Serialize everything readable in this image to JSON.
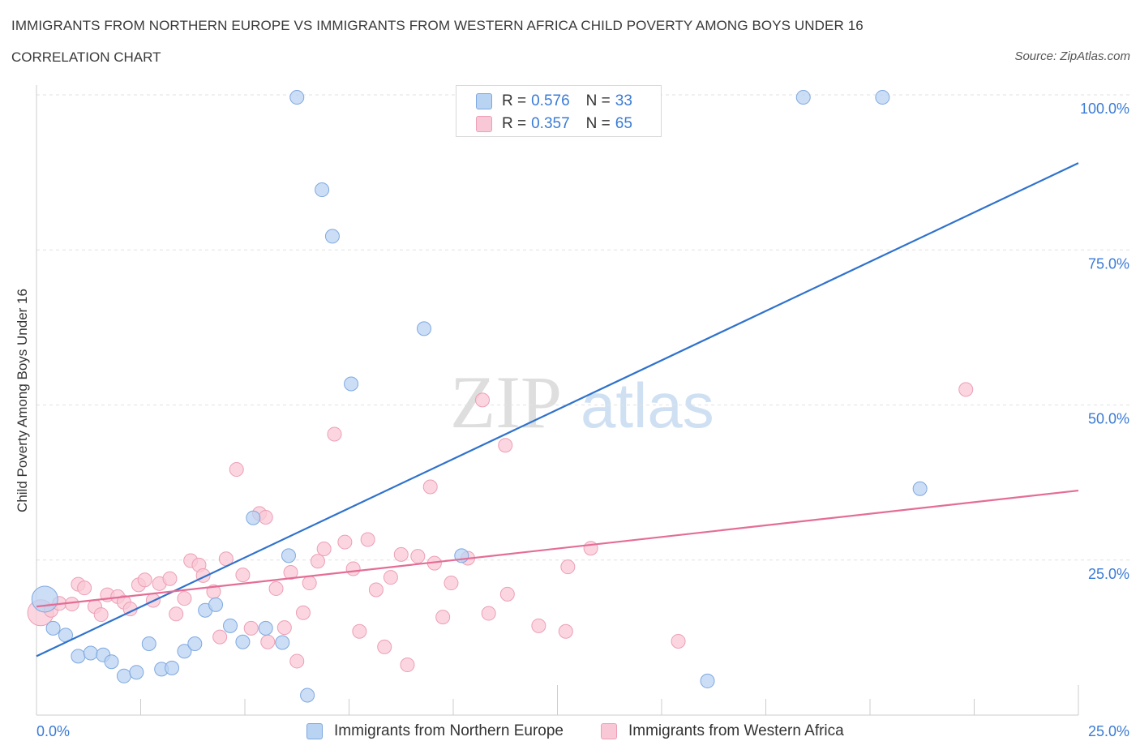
{
  "header": {
    "title": "IMMIGRANTS FROM NORTHERN EUROPE VS IMMIGRANTS FROM WESTERN AFRICA CHILD POVERTY AMONG BOYS UNDER 16",
    "subtitle": "CORRELATION CHART",
    "source": "Source: ZipAtlas.com"
  },
  "watermark": {
    "zip": "ZIP",
    "atlas": "atlas"
  },
  "colors": {
    "blue_fill": "#b9d3f3",
    "blue_stroke": "#7ea8e0",
    "blue_line": "#2f72cc",
    "pink_fill": "#f9c8d6",
    "pink_stroke": "#ec9fb6",
    "pink_line": "#e46d96",
    "tick_label": "#3a7bd5"
  },
  "legend": {
    "rows": [
      {
        "r_label": "R =",
        "r_value": "0.576",
        "n_label": "N =",
        "n_value": "33"
      },
      {
        "r_label": "R =",
        "r_value": "0.357",
        "n_label": "N =",
        "n_value": "65"
      }
    ]
  },
  "chart_data": {
    "type": "scatter",
    "title": "IMMIGRANTS FROM NORTHERN EUROPE VS IMMIGRANTS FROM WESTERN AFRICA CHILD POVERTY AMONG BOYS UNDER 16",
    "xlabel": "",
    "ylabel": "Child Poverty Among Boys Under 16",
    "xlim": [
      0,
      25
    ],
    "ylim": [
      0,
      100
    ],
    "x_tick_labels": [
      "0.0%",
      "25.0%"
    ],
    "y_tick_labels": [
      "100.0%",
      "75.0%",
      "50.0%",
      "25.0%"
    ],
    "y_tick_values": [
      100,
      75,
      50,
      25
    ],
    "grid": true,
    "legend_position": "bottom",
    "series": [
      {
        "name": "Immigrants from Northern Europe",
        "color": "#7ea8e0",
        "trend": {
          "x": [
            0,
            25
          ],
          "y": [
            9.5,
            89
          ]
        },
        "points": [
          {
            "x": 0.2,
            "y": 18.7,
            "big": true
          },
          {
            "x": 0.4,
            "y": 14
          },
          {
            "x": 0.7,
            "y": 12.9
          },
          {
            "x": 1.0,
            "y": 9.5
          },
          {
            "x": 1.3,
            "y": 10
          },
          {
            "x": 1.6,
            "y": 9.7
          },
          {
            "x": 1.8,
            "y": 8.6
          },
          {
            "x": 2.1,
            "y": 6.3
          },
          {
            "x": 2.4,
            "y": 6.9
          },
          {
            "x": 2.7,
            "y": 11.5
          },
          {
            "x": 3.0,
            "y": 7.4
          },
          {
            "x": 3.25,
            "y": 7.6
          },
          {
            "x": 3.55,
            "y": 10.3
          },
          {
            "x": 3.8,
            "y": 11.5
          },
          {
            "x": 4.05,
            "y": 16.9
          },
          {
            "x": 4.3,
            "y": 17.8
          },
          {
            "x": 4.65,
            "y": 14.4
          },
          {
            "x": 4.95,
            "y": 11.8
          },
          {
            "x": 5.2,
            "y": 31.8
          },
          {
            "x": 5.5,
            "y": 14
          },
          {
            "x": 5.9,
            "y": 11.7
          },
          {
            "x": 6.05,
            "y": 25.7
          },
          {
            "x": 6.5,
            "y": 3.2
          },
          {
            "x": 6.25,
            "y": 99.6
          },
          {
            "x": 6.85,
            "y": 84.7
          },
          {
            "x": 7.1,
            "y": 77.2
          },
          {
            "x": 7.55,
            "y": 53.4
          },
          {
            "x": 9.3,
            "y": 62.3
          },
          {
            "x": 10.2,
            "y": 25.7
          },
          {
            "x": 16.1,
            "y": 5.5
          },
          {
            "x": 18.4,
            "y": 99.6
          },
          {
            "x": 20.3,
            "y": 99.6
          },
          {
            "x": 21.2,
            "y": 36.5
          }
        ]
      },
      {
        "name": "Immigrants from Western Africa",
        "color": "#ec9fb6",
        "trend": {
          "x": [
            0,
            25
          ],
          "y": [
            17.5,
            36.2
          ]
        },
        "points": [
          {
            "x": 0.1,
            "y": 16.5,
            "big": true
          },
          {
            "x": 0.35,
            "y": 16.9
          },
          {
            "x": 0.55,
            "y": 18
          },
          {
            "x": 0.85,
            "y": 17.9
          },
          {
            "x": 1.0,
            "y": 21.1
          },
          {
            "x": 1.15,
            "y": 20.5
          },
          {
            "x": 1.4,
            "y": 17.5
          },
          {
            "x": 1.55,
            "y": 16.2
          },
          {
            "x": 1.7,
            "y": 19.4
          },
          {
            "x": 1.95,
            "y": 19.1
          },
          {
            "x": 2.1,
            "y": 18.2
          },
          {
            "x": 2.25,
            "y": 17.1
          },
          {
            "x": 2.45,
            "y": 21
          },
          {
            "x": 2.6,
            "y": 21.8
          },
          {
            "x": 2.8,
            "y": 18.5
          },
          {
            "x": 2.95,
            "y": 21.2
          },
          {
            "x": 3.2,
            "y": 22
          },
          {
            "x": 3.35,
            "y": 16.3
          },
          {
            "x": 3.55,
            "y": 18.8
          },
          {
            "x": 3.7,
            "y": 24.9
          },
          {
            "x": 3.9,
            "y": 24.2
          },
          {
            "x": 4.0,
            "y": 22.5
          },
          {
            "x": 4.25,
            "y": 19.9
          },
          {
            "x": 4.4,
            "y": 12.6
          },
          {
            "x": 4.55,
            "y": 25.2
          },
          {
            "x": 4.8,
            "y": 39.6
          },
          {
            "x": 4.95,
            "y": 22.6
          },
          {
            "x": 5.15,
            "y": 14
          },
          {
            "x": 5.35,
            "y": 32.5
          },
          {
            "x": 5.5,
            "y": 31.9
          },
          {
            "x": 5.55,
            "y": 11.8
          },
          {
            "x": 5.75,
            "y": 20.4
          },
          {
            "x": 5.95,
            "y": 14.1
          },
          {
            "x": 6.1,
            "y": 23
          },
          {
            "x": 6.25,
            "y": 8.7
          },
          {
            "x": 6.4,
            "y": 16.5
          },
          {
            "x": 6.55,
            "y": 21.3
          },
          {
            "x": 6.75,
            "y": 24.8
          },
          {
            "x": 6.9,
            "y": 26.8
          },
          {
            "x": 7.15,
            "y": 45.3
          },
          {
            "x": 7.4,
            "y": 27.9
          },
          {
            "x": 7.6,
            "y": 23.6
          },
          {
            "x": 7.75,
            "y": 13.5
          },
          {
            "x": 7.95,
            "y": 28.3
          },
          {
            "x": 8.15,
            "y": 20.2
          },
          {
            "x": 8.35,
            "y": 11
          },
          {
            "x": 8.5,
            "y": 22.2
          },
          {
            "x": 8.75,
            "y": 25.9
          },
          {
            "x": 8.9,
            "y": 8.1
          },
          {
            "x": 9.15,
            "y": 25.6
          },
          {
            "x": 9.45,
            "y": 36.8
          },
          {
            "x": 9.55,
            "y": 24.5
          },
          {
            "x": 9.75,
            "y": 15.8
          },
          {
            "x": 9.95,
            "y": 21.3
          },
          {
            "x": 10.35,
            "y": 25.3
          },
          {
            "x": 10.7,
            "y": 50.8
          },
          {
            "x": 10.85,
            "y": 16.4
          },
          {
            "x": 11.25,
            "y": 43.5
          },
          {
            "x": 11.3,
            "y": 19.5
          },
          {
            "x": 12.05,
            "y": 14.4
          },
          {
            "x": 12.7,
            "y": 13.5
          },
          {
            "x": 12.75,
            "y": 23.9
          },
          {
            "x": 13.3,
            "y": 26.9
          },
          {
            "x": 15.4,
            "y": 11.9
          },
          {
            "x": 22.3,
            "y": 52.5
          }
        ]
      }
    ]
  }
}
